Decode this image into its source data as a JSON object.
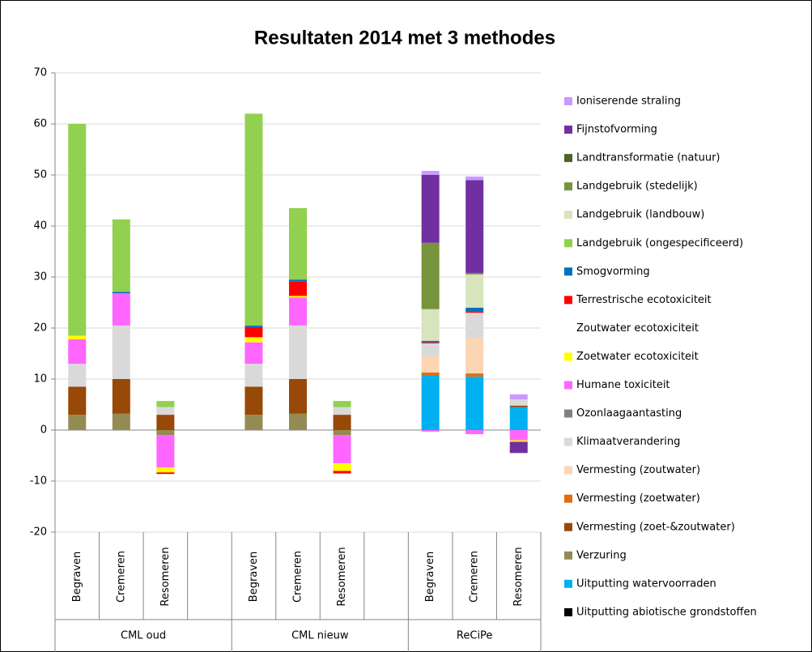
{
  "chart_data": {
    "type": "stacked_bar",
    "title": "Resultaten 2014 met 3 methodes",
    "categories": [
      "Begraven",
      "Cremeren",
      "Resomeren",
      null,
      "Begraven",
      "Cremeren",
      "Resomeren",
      null,
      "Begraven",
      "Cremeren",
      "Resomeren"
    ],
    "groups": [
      {
        "name": "CML oud",
        "count": 4
      },
      {
        "name": "CML nieuw",
        "count": 4
      },
      {
        "name": "ReCiPe",
        "count": 3
      }
    ],
    "ylim": [
      -20,
      70
    ],
    "yticks": [
      -20,
      -10,
      0,
      10,
      20,
      30,
      40,
      50,
      60,
      70
    ],
    "grid": true,
    "series": [
      {
        "name": "Uitputting abiotische grondstoffen",
        "color": "#000000",
        "values": [
          0,
          0,
          0,
          null,
          0,
          0,
          0,
          null,
          0,
          0,
          0
        ]
      },
      {
        "name": "Uitputting watervoorraden",
        "color": "#00b0f0",
        "values": [
          0,
          0,
          0,
          null,
          0,
          0,
          0,
          null,
          10.8,
          10.5,
          4.5
        ]
      },
      {
        "name": "Verzuring",
        "color": "#948a54",
        "values": [
          3,
          3.2,
          -1,
          null,
          3,
          3.2,
          -1,
          null,
          0,
          0,
          0
        ]
      },
      {
        "name": "Vermesting (zoet-&zoutwater)",
        "color": "#984807",
        "values": [
          5.5,
          6.8,
          3,
          null,
          5.5,
          6.8,
          3,
          null,
          0,
          0,
          0.3
        ]
      },
      {
        "name": "Vermesting (zoetwater)",
        "color": "#e46c0a",
        "values": [
          0,
          0,
          0,
          null,
          0,
          0,
          0,
          null,
          0.5,
          0.6,
          0
        ]
      },
      {
        "name": "Vermesting (zoutwater)",
        "color": "#fcd5b5",
        "values": [
          0,
          0,
          0,
          null,
          0,
          0,
          0,
          null,
          3.2,
          6.9,
          0
        ]
      },
      {
        "name": "Klimaatverandering",
        "color": "#d9d9d9",
        "values": [
          4.5,
          10.5,
          1.5,
          null,
          4.5,
          10.5,
          1.5,
          null,
          2.5,
          5,
          1.2
        ]
      },
      {
        "name": "Ozonlaagaantasting",
        "color": "#808080",
        "values": [
          0,
          0,
          0,
          null,
          0,
          0,
          0,
          null,
          0,
          0,
          0
        ]
      },
      {
        "name": "Humane toxiciteit",
        "color": "#ff66ff",
        "values": [
          4.8,
          6.3,
          -6.3,
          null,
          4.2,
          5.5,
          -5.5,
          null,
          -0.3,
          -0.8,
          -2
        ]
      },
      {
        "name": "Zoetwater ecotoxiciteit",
        "color": "#ffff00",
        "values": [
          0.7,
          0,
          -1,
          null,
          1,
          0.3,
          -1.5,
          null,
          0,
          0,
          -0.3
        ]
      },
      {
        "name": "Zoutwater ecotoxiciteit",
        "color": "#ffffff",
        "values": [
          0,
          0,
          0,
          null,
          0,
          0,
          0,
          null,
          0,
          0,
          0
        ]
      },
      {
        "name": "Terrestrische ecotoxiciteit",
        "color": "#ff0000",
        "values": [
          0,
          0,
          -0.3,
          null,
          2,
          2.8,
          -0.5,
          null,
          0.2,
          0.3,
          0
        ]
      },
      {
        "name": "Smogvorming",
        "color": "#0070c0",
        "values": [
          0,
          0.3,
          0,
          null,
          0.3,
          0.4,
          0,
          null,
          0.3,
          0.7,
          0
        ]
      },
      {
        "name": "Landgebruik (ongespecificeerd)",
        "color": "#92d050",
        "values": [
          41.5,
          14.2,
          1.2,
          null,
          41.5,
          14,
          1.2,
          null,
          0,
          0,
          0
        ]
      },
      {
        "name": "Landgebruik (landbouw)",
        "color": "#d7e4bd",
        "values": [
          0,
          0,
          0,
          null,
          0,
          0,
          0,
          null,
          6.2,
          6.5,
          0
        ]
      },
      {
        "name": "Landgebruik (stedelijk)",
        "color": "#77933c",
        "values": [
          0,
          0,
          0,
          null,
          0,
          0,
          0,
          null,
          13,
          0.3,
          0
        ]
      },
      {
        "name": "Landtransformatie (natuur)",
        "color": "#4f6228",
        "values": [
          0,
          0,
          0,
          null,
          0,
          0,
          0,
          null,
          0,
          0,
          0
        ]
      },
      {
        "name": "Fijnstofvorming",
        "color": "#7030a0",
        "values": [
          0,
          0,
          0,
          null,
          0,
          0,
          0,
          null,
          13.3,
          18.2,
          -2.2
        ]
      },
      {
        "name": "Ioniserende straling",
        "color": "#cc99ff",
        "values": [
          0,
          0,
          0,
          null,
          0,
          0,
          0,
          null,
          0.8,
          0.7,
          1
        ]
      }
    ]
  }
}
